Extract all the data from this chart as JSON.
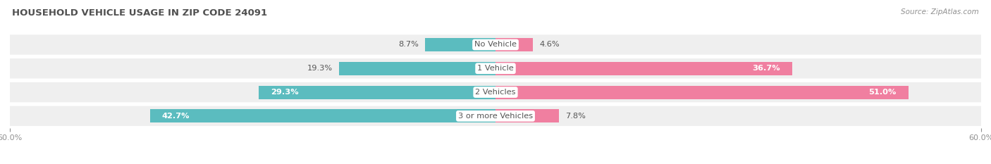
{
  "title": "HOUSEHOLD VEHICLE USAGE IN ZIP CODE 24091",
  "source": "Source: ZipAtlas.com",
  "categories": [
    "No Vehicle",
    "1 Vehicle",
    "2 Vehicles",
    "3 or more Vehicles"
  ],
  "owner_values": [
    8.7,
    19.3,
    29.3,
    42.7
  ],
  "renter_values": [
    4.6,
    36.7,
    51.0,
    7.8
  ],
  "owner_color": "#5bbcbf",
  "renter_color": "#f07fa0",
  "background_color": "#ffffff",
  "row_bg_color": "#efefef",
  "row_inner_color": "#ffffff",
  "xlim": 60.0,
  "title_fontsize": 9.5,
  "label_fontsize": 8.2,
  "tick_fontsize": 8,
  "legend_fontsize": 8.5,
  "title_color": "#505050",
  "source_color": "#909090",
  "axis_label_color": "#909090",
  "center_label_color": "#555555",
  "value_label_color_dark": "#555555",
  "value_label_color_white": "#ffffff"
}
